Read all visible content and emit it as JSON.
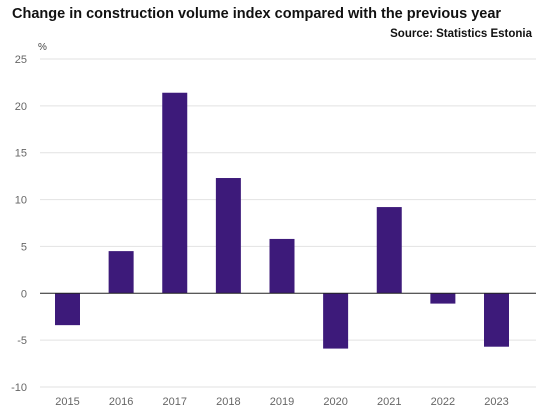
{
  "chart_data": {
    "type": "bar",
    "title": "Change in construction volume index compared with the previous year",
    "source": "Source: Statistics Estonia",
    "ylabel": "%",
    "xlabel": "",
    "categories": [
      "2015",
      "2016",
      "2017",
      "2018",
      "2019",
      "2020",
      "2021",
      "2022",
      "2023"
    ],
    "values": [
      -3.4,
      4.5,
      21.4,
      12.3,
      5.8,
      -5.9,
      9.2,
      -1.1,
      -5.7
    ],
    "ylim": [
      -10,
      25
    ],
    "yticks": [
      25,
      20,
      15,
      10,
      5,
      0,
      -5,
      -10
    ],
    "grid": true,
    "legend": "none",
    "bar_color": "#3d1a7a",
    "grid_color": "#e2e2e2",
    "zero_line_color": "#222222"
  }
}
